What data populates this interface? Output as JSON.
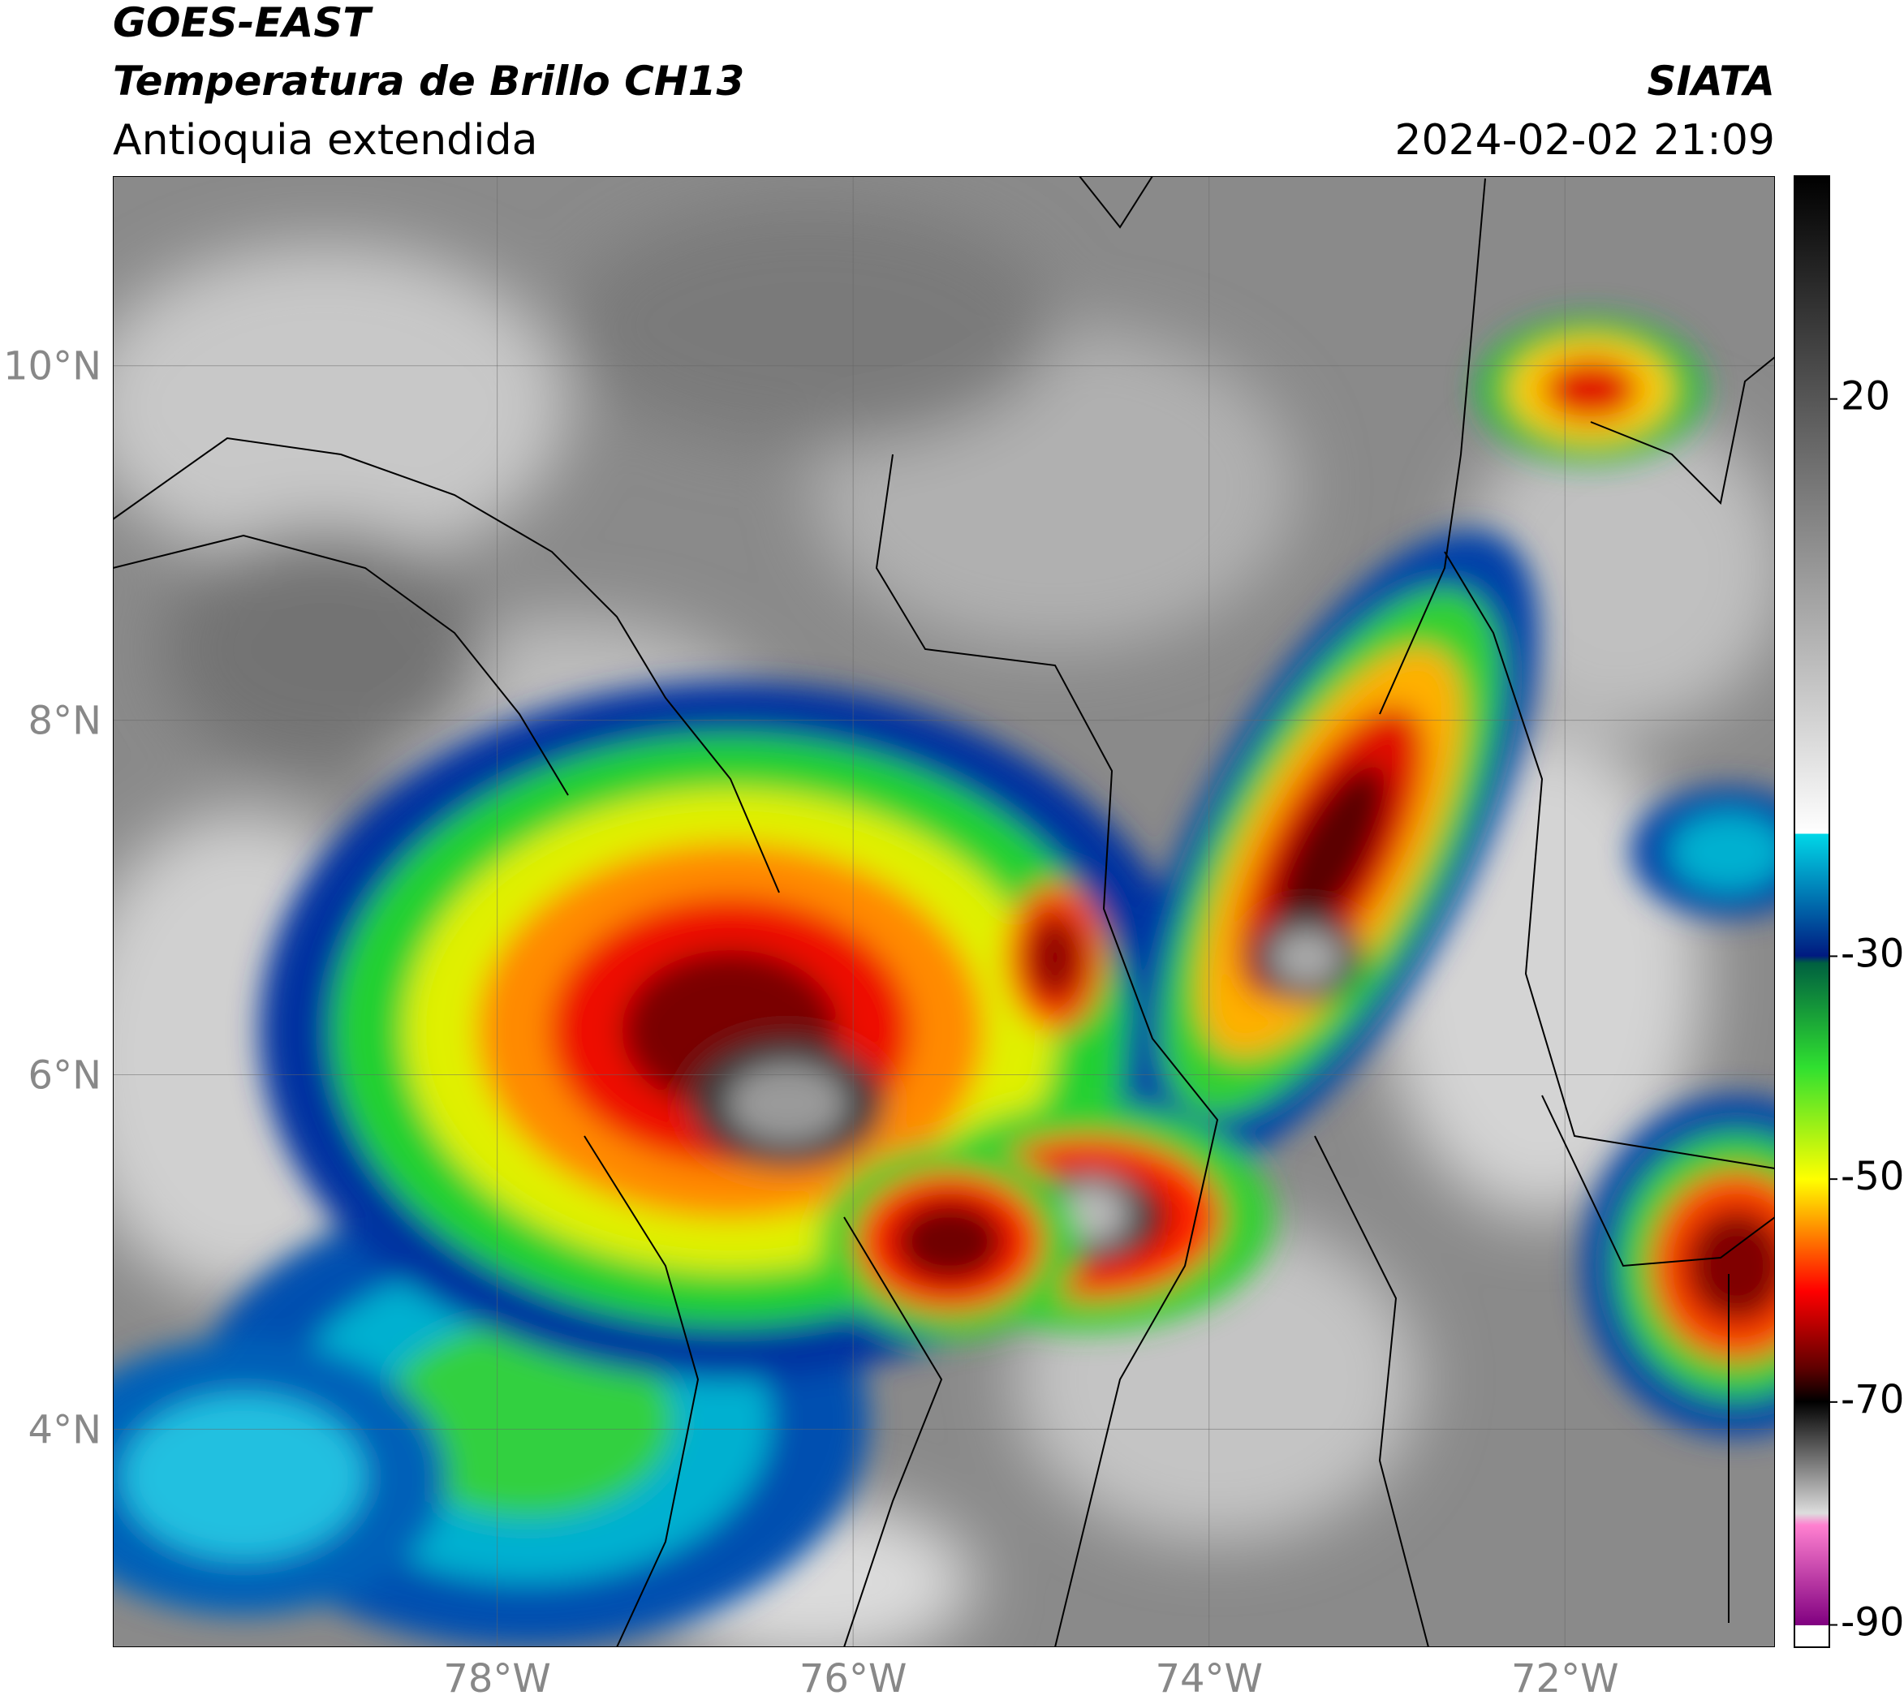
{
  "header": {
    "satellite": "GOES-EAST",
    "product": "Temperatura de Brillo CH13",
    "region": "Antioquia extendida",
    "agency": "SIATA",
    "timestamp": "2024-02-02 21:09"
  },
  "map": {
    "xlim": [
      -80.16,
      -70.82
    ],
    "ylim": [
      2.77,
      11.07
    ],
    "xticks": [
      {
        "value": -78,
        "label": "78°W"
      },
      {
        "value": -76,
        "label": "76°W"
      },
      {
        "value": -74,
        "label": "74°W"
      },
      {
        "value": -72,
        "label": "72°W"
      }
    ],
    "yticks": [
      {
        "value": 10,
        "label": "10°N"
      },
      {
        "value": 8,
        "label": "8°N"
      },
      {
        "value": 6,
        "label": "6°N"
      },
      {
        "value": 4,
        "label": "4°N"
      }
    ],
    "grid": true
  },
  "colorbar": {
    "lim": [
      -92,
      40
    ],
    "ticks": [
      20,
      -30,
      -50,
      -70,
      -90
    ]
  }
}
